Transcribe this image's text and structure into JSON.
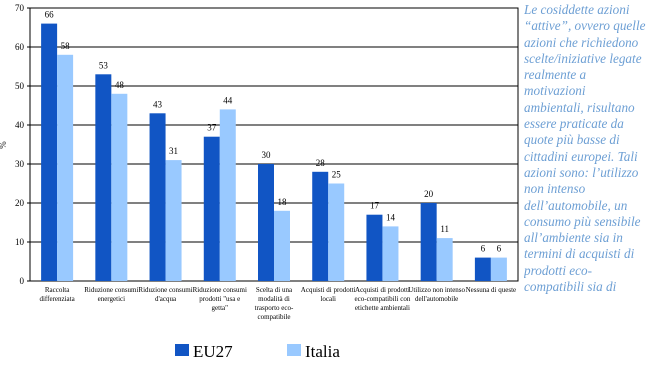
{
  "chart_data": {
    "type": "bar",
    "y_label": "%",
    "categories": [
      "Raccolta differenziata",
      "Riduzione consumi energetici",
      "Riduzione consumi d'acqua",
      "Riduzione consumi prodotti \"usa e getta\"",
      "Scelta di una modalità di trasporto eco-compatibile",
      "Acquisti di prodotti locali",
      "Acquisti di prodotti eco-compatibili con etichette ambientali",
      "Utilizzo non intenso dell'automobile",
      "Nessuna di queste"
    ],
    "series": [
      {
        "name": "EU27",
        "color": "#1155c4",
        "values": [
          66,
          53,
          43,
          37,
          30,
          28,
          17,
          20,
          6
        ]
      },
      {
        "name": "Italia",
        "color": "#99c9ff",
        "values": [
          58,
          48,
          31,
          44,
          18,
          25,
          14,
          11,
          6
        ]
      }
    ],
    "ylim": [
      0,
      70
    ],
    "yticks": [
      0,
      10,
      20,
      30,
      40,
      50,
      60,
      70
    ],
    "grid": true
  },
  "side_text": "Le cosiddette azioni “attive”, ovvero quelle azioni che richiedono scelte/iniziative legate realmente a motivazioni ambientali, risultano essere praticate da quote più basse di cittadini europei. Tali azioni sono: l’utilizzo non intenso dell’automobile, un consumo più sensibile all’ambiente sia in termini di acquisti di prodotti eco-compatibili sia di"
}
